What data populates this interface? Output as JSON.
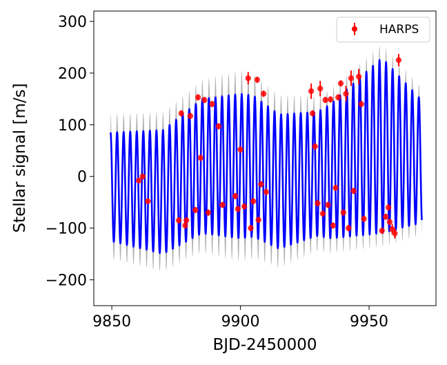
{
  "chart_data": {
    "type": "line",
    "xlabel": "BJD-2450000",
    "ylabel": "Stellar signal [m/s]",
    "xlim": [
      9843,
      9976
    ],
    "ylim": [
      -250,
      320
    ],
    "xticks": [
      9850,
      9900,
      9950
    ],
    "xtick_labels": [
      "9850",
      "9900",
      "9950"
    ],
    "yticks": [
      -200,
      -100,
      0,
      100,
      200,
      300
    ],
    "ytick_labels": [
      "−200",
      "−100",
      "0",
      "100",
      "200",
      "300"
    ],
    "grid": false,
    "legend": {
      "placement": "top-right",
      "entries": [
        "HARPS"
      ]
    },
    "model": {
      "x_start": 9849.5,
      "x_end": 9970.5,
      "period_days": 2.55,
      "baseline": [
        [
          9849.5,
          -20
        ],
        [
          9870,
          -30
        ],
        [
          9885,
          20
        ],
        [
          9905,
          20
        ],
        [
          9915,
          -10
        ],
        [
          9935,
          10
        ],
        [
          9955,
          60
        ],
        [
          9970,
          30
        ]
      ],
      "amplitude": [
        [
          9849.5,
          105
        ],
        [
          9870,
          120
        ],
        [
          9900,
          140
        ],
        [
          9930,
          120
        ],
        [
          9955,
          170
        ],
        [
          9970,
          120
        ]
      ],
      "band_halfwidth": [
        [
          9849.5,
          35
        ],
        [
          9880,
          35
        ],
        [
          9900,
          45
        ],
        [
          9930,
          30
        ],
        [
          9970,
          25
        ]
      ],
      "line_color": "#0000ff",
      "band_color": "#a9a9a9"
    },
    "series": [
      {
        "name": "HARPS",
        "color": "#ff0000",
        "x": [
          9860.5,
          9862.0,
          9864.0,
          9876.0,
          9877.0,
          9878.5,
          9879.0,
          9880.5,
          9882.5,
          9883.5,
          9884.5,
          9886.0,
          9887.5,
          9889.0,
          9891.5,
          9893.0,
          9898.0,
          9899.0,
          9900.0,
          9901.5,
          9903.0,
          9904.0,
          9905.0,
          9906.5,
          9907.0,
          9908.0,
          9909.0,
          9910.0,
          9927.5,
          9928.0,
          9929.0,
          9930.0,
          9931.0,
          9932.0,
          9933.0,
          9934.0,
          9935.0,
          9936.0,
          9937.0,
          9938.0,
          9939.0,
          9940.0,
          9941.0,
          9942.0,
          9943.0,
          9944.0,
          9946.0,
          9947.0,
          9948.0,
          9955.0,
          9956.5,
          9957.5,
          9958.0,
          9959.0,
          9960.0,
          9961.5
        ],
        "y": [
          -8,
          0,
          -48,
          -85,
          122,
          -95,
          -85,
          117,
          -65,
          153,
          36,
          148,
          -70,
          140,
          97,
          -55,
          -38,
          -63,
          52,
          -58,
          190,
          -100,
          -48,
          187,
          -84,
          -15,
          160,
          -30,
          165,
          122,
          58,
          -52,
          170,
          -72,
          148,
          -55,
          149,
          -95,
          -22,
          153,
          180,
          -70,
          160,
          -100,
          190,
          -28,
          193,
          140,
          -82,
          -105,
          -78,
          -60,
          -88,
          -102,
          -110,
          225
        ],
        "err": [
          5,
          5,
          5,
          6,
          6,
          6,
          6,
          6,
          6,
          6,
          6,
          6,
          6,
          6,
          6,
          6,
          6,
          6,
          6,
          6,
          12,
          6,
          6,
          6,
          6,
          6,
          6,
          6,
          15,
          6,
          6,
          6,
          15,
          6,
          6,
          6,
          6,
          6,
          6,
          6,
          6,
          6,
          15,
          6,
          15,
          6,
          15,
          6,
          6,
          6,
          6,
          6,
          6,
          10,
          10,
          12
        ]
      }
    ]
  }
}
